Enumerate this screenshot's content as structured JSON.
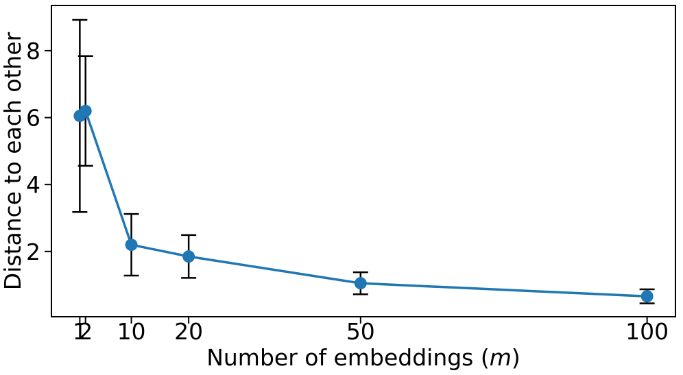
{
  "figure": {
    "background": "#ffffff"
  },
  "chart_data": {
    "type": "line",
    "title": "",
    "xlabel_parts": [
      {
        "text": "Number of embeddings (",
        "italic": false
      },
      {
        "text": "m",
        "italic": true
      },
      {
        "text": ")",
        "italic": false
      }
    ],
    "ylabel": "Distance to each other",
    "x": [
      1,
      2,
      10,
      20,
      50,
      100
    ],
    "series": [
      {
        "name": "distance-to-each-other",
        "values": [
          6.05,
          6.2,
          2.2,
          1.85,
          1.05,
          0.66
        ],
        "yerr": [
          2.87,
          1.64,
          0.92,
          0.64,
          0.33,
          0.21
        ],
        "color": "#1f77b4",
        "marker": "circle",
        "errorbar_color": "#000000"
      }
    ],
    "xticks": [
      1,
      2,
      10,
      20,
      50,
      100
    ],
    "xtick_labels": [
      "1",
      "2",
      "10",
      "20",
      "50",
      "100"
    ],
    "yticks": [
      2,
      4,
      6,
      8
    ],
    "ytick_labels": [
      "2",
      "4",
      "6",
      "8"
    ],
    "xlim": [
      -3.95,
      104.95
    ],
    "ylim": [
      0.05,
      9.35
    ],
    "grid": false,
    "legend": null,
    "axis_color": "#000000"
  }
}
